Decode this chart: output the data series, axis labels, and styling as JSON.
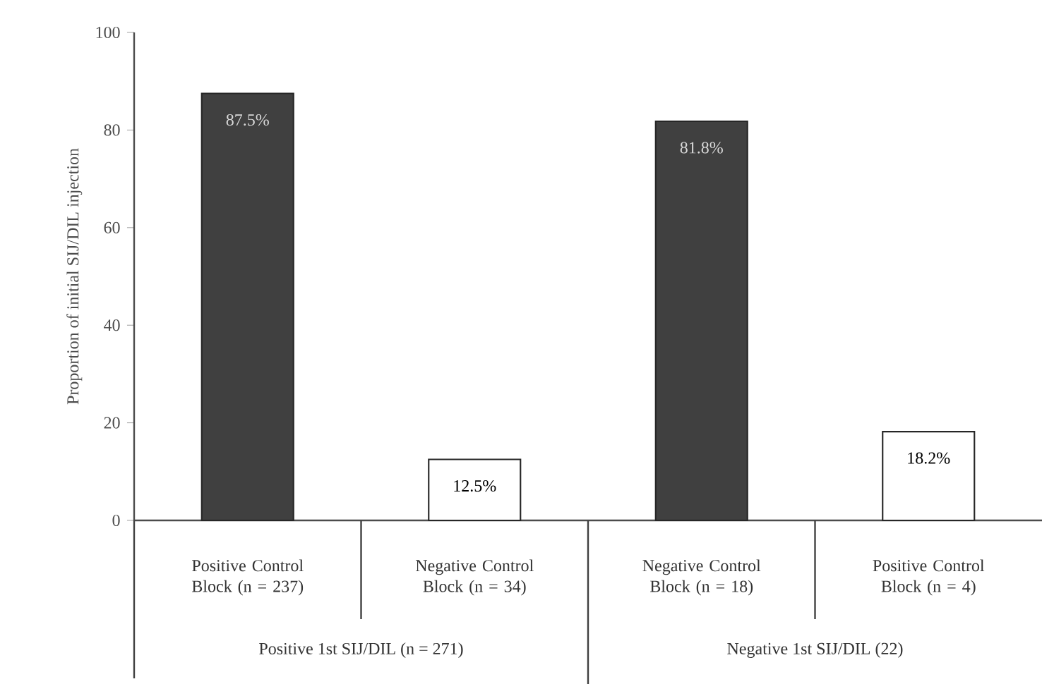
{
  "chart_data": {
    "type": "bar",
    "ylabel": "Proportion of initial SIJ/DIL injection",
    "categories": [
      "Positive Control Block (n = 237)",
      "Negative Control Block (n = 34)",
      "Negative Control Block (n = 18)",
      "Positive Control Block (n = 4)"
    ],
    "values": [
      87.5,
      12.5,
      81.8,
      18.2
    ],
    "colors": [
      "#404040",
      "#ffffff",
      "#404040",
      "#ffffff"
    ],
    "value_labels": [
      "87.5%",
      "12.5%",
      "81.8%",
      "18.2%"
    ],
    "ylim": [
      0,
      100
    ],
    "yticks": [
      0,
      20,
      40,
      60,
      80,
      100
    ],
    "annotations": [
      "Positive 1st SIJ/DIL (n = 271)",
      "Negative 1st SIJ/DIL (22)"
    ]
  }
}
